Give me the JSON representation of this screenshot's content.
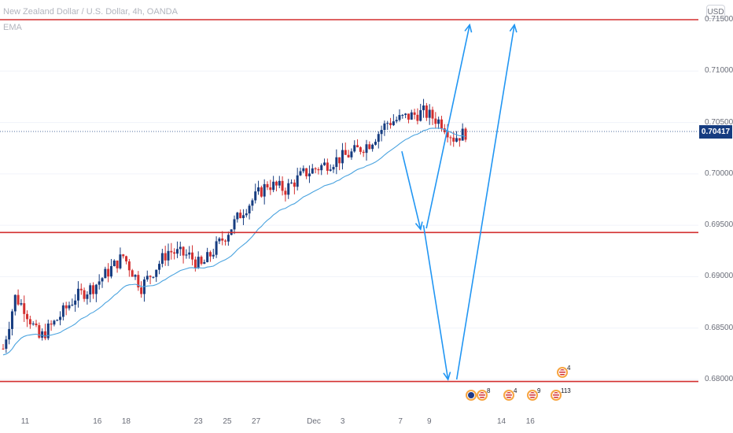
{
  "header": {
    "title": "New Zealand Dollar / U.S. Dollar, 4h, OANDA",
    "indicator": "EMA",
    "currency_button": "USD"
  },
  "last_price": "0.70417",
  "chart_data": {
    "type": "candlestick",
    "ylim": [
      0.6772,
      0.7175
    ],
    "y_ticks": [
      "0.71500",
      "0.71000",
      "0.70500",
      "0.70000",
      "0.69500",
      "0.69000",
      "0.68500",
      "0.68000"
    ],
    "x_ticks": [
      "11",
      "16",
      "18",
      "23",
      "25",
      "27",
      "Dec",
      "3",
      "7",
      "9",
      "14",
      "16"
    ],
    "horizontal_lines": [
      0.715,
      0.6943,
      0.6798
    ],
    "projection_arrows": [
      {
        "from": [
          7.1,
          0.7022
        ],
        "to": [
          8.4,
          0.6946
        ]
      },
      {
        "from": [
          8.6,
          0.695
        ],
        "to": [
          10.3,
          0.68
        ]
      },
      {
        "from": [
          8.8,
          0.6947
        ],
        "to": [
          11.8,
          0.7145
        ]
      },
      {
        "from": [
          10.9,
          0.68
        ],
        "to": [
          14.9,
          0.7145
        ]
      }
    ],
    "events": [
      {
        "flag": "nz",
        "count": ""
      },
      {
        "flag": "us",
        "count": "8"
      },
      {
        "flag": "us",
        "count": "4"
      },
      {
        "flag": "us",
        "count": "9"
      },
      {
        "flag": "us",
        "count": "113"
      },
      {
        "flag": "us",
        "count": "4"
      }
    ],
    "colors": {
      "up": "#163c80",
      "down": "#d32f2f",
      "ema": "#4aa3df",
      "level": "#d32f2f",
      "arrow": "#2196f3"
    }
  }
}
